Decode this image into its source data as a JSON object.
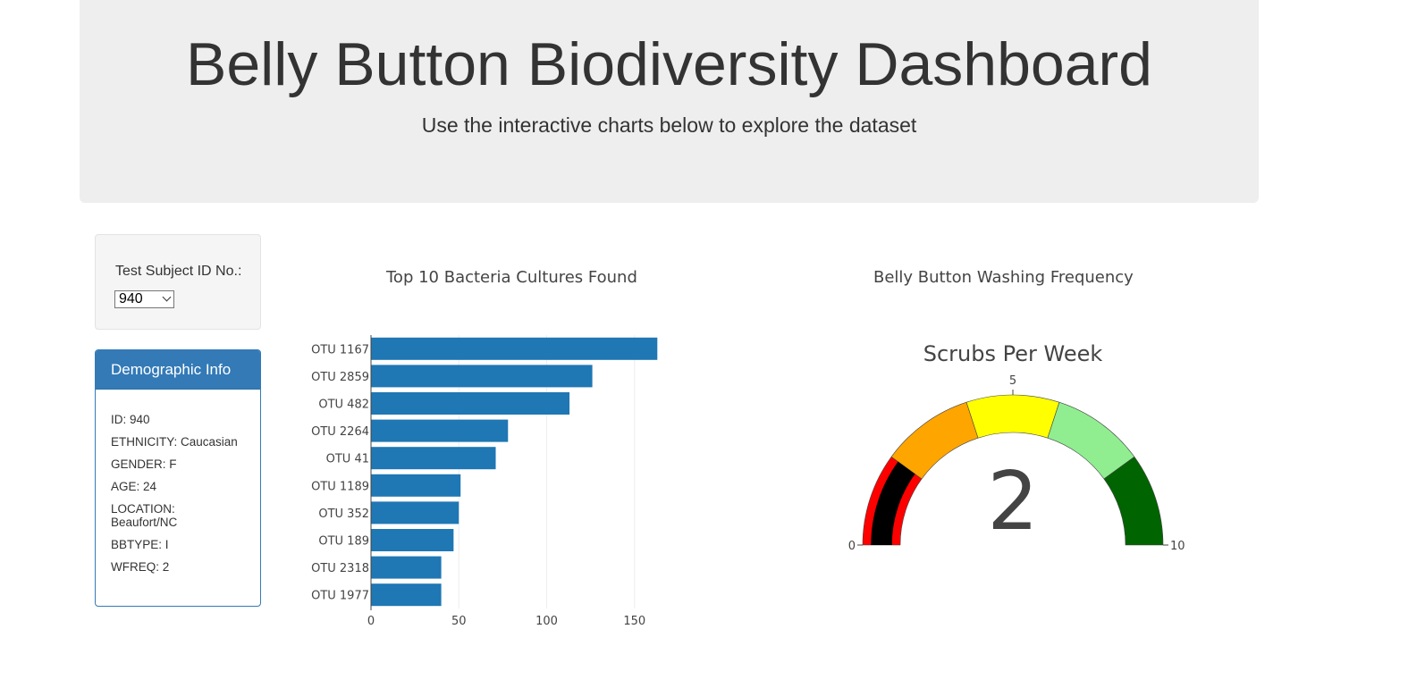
{
  "header": {
    "title": "Belly Button Biodiversity Dashboard",
    "subtitle": "Use the interactive charts below to explore the dataset"
  },
  "selector": {
    "label": "Test Subject ID No.:",
    "selected": "940"
  },
  "demographics": {
    "heading": "Demographic Info",
    "rows": [
      "ID: 940",
      "ETHNICITY: Caucasian",
      "GENDER: F",
      "AGE: 24",
      "LOCATION: Beaufort/NC",
      "BBTYPE: I",
      "WFREQ: 2"
    ]
  },
  "colors": {
    "bar": "#1f77b4",
    "header_bg": "#eeeeee",
    "panel_primary": "#337ab7"
  },
  "chart_data": [
    {
      "type": "bar",
      "orientation": "horizontal",
      "title": "Top 10 Bacteria Cultures Found",
      "categories": [
        "OTU 1167",
        "OTU 2859",
        "OTU 482",
        "OTU 2264",
        "OTU 41",
        "OTU 1189",
        "OTU 352",
        "OTU 189",
        "OTU 2318",
        "OTU 1977"
      ],
      "values": [
        163,
        126,
        113,
        78,
        71,
        51,
        50,
        47,
        40,
        40
      ],
      "xlim": [
        0,
        163
      ],
      "xticks": [
        0,
        50,
        100,
        150
      ],
      "grid": true
    },
    {
      "type": "gauge",
      "title": "Belly Button Washing Frequency",
      "gauge_title": "Scrubs Per Week",
      "value": 2,
      "range": [
        0,
        10
      ],
      "ticks": [
        0,
        5,
        10
      ],
      "steps": [
        {
          "range": [
            0,
            2
          ],
          "color": "#ff0000"
        },
        {
          "range": [
            2,
            4
          ],
          "color": "#ffa500"
        },
        {
          "range": [
            4,
            6
          ],
          "color": "#ffff00"
        },
        {
          "range": [
            6,
            8
          ],
          "color": "#90ee90"
        },
        {
          "range": [
            8,
            10
          ],
          "color": "#006400"
        }
      ],
      "bar_color": "#000000"
    }
  ]
}
